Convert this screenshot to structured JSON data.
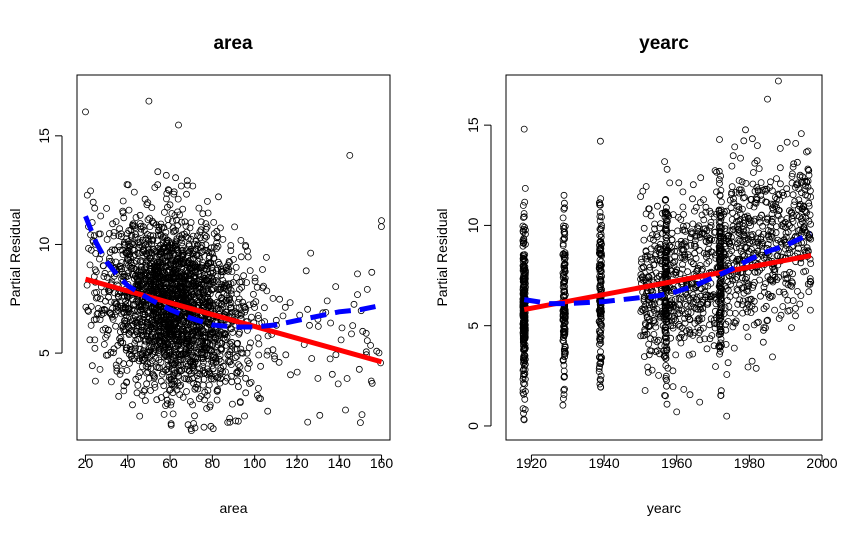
{
  "chart_data": [
    {
      "type": "scatter",
      "title": "area",
      "xlabel": "area",
      "ylabel": "Partial Residual",
      "xlim": [
        16,
        164
      ],
      "ylim": [
        1,
        17.8
      ],
      "xticks": [
        20,
        40,
        60,
        80,
        100,
        120,
        140,
        160
      ],
      "yticks": [
        5,
        10,
        15
      ],
      "points_description": "dense cloud of roughly 2400 hollow circle residuals, heaviest at area 40-100, residuals mostly 3-12",
      "cloud": {
        "x_center": 62,
        "x_spread": 17,
        "y_center": 7.4,
        "y_spread": 2.0
      },
      "series": [
        {
          "style": "solid",
          "color": "#ff0000",
          "x": [
            20,
            160
          ],
          "y": [
            8.4,
            4.6
          ]
        },
        {
          "style": "dashed",
          "color": "#0000ff",
          "x": [
            20,
            25,
            30,
            35,
            40,
            50,
            60,
            70,
            80,
            90,
            100,
            110,
            120,
            130,
            140,
            150,
            160
          ],
          "y": [
            11.3,
            10.1,
            9.2,
            8.6,
            8.1,
            7.5,
            7.0,
            6.6,
            6.3,
            6.2,
            6.2,
            6.3,
            6.5,
            6.7,
            6.9,
            7.0,
            7.2
          ]
        }
      ]
    },
    {
      "type": "scatter",
      "title": "yearc",
      "xlabel": "yearc",
      "ylabel": "Partial Residual",
      "xlim": [
        1913,
        2000
      ],
      "ylim": [
        -0.7,
        17.5
      ],
      "xticks": [
        1920,
        1940,
        1960,
        1980,
        2000
      ],
      "yticks": [
        0,
        5,
        10,
        15
      ],
      "points_description": "hollow circle residuals stacked in vertical columns at 1918, 1929, 1939, 1957, 1972, plus spread points 1950-1997",
      "series": [
        {
          "style": "solid",
          "color": "#ff0000",
          "x": [
            1918,
            1997
          ],
          "y": [
            5.8,
            8.5
          ]
        },
        {
          "style": "dashed",
          "color": "#0000ff",
          "x": [
            1918,
            1925,
            1930,
            1940,
            1945,
            1950,
            1955,
            1960,
            1965,
            1970,
            1975,
            1980,
            1985,
            1990,
            1997
          ],
          "y": [
            6.3,
            6.1,
            6.1,
            6.2,
            6.3,
            6.4,
            6.5,
            6.7,
            7.0,
            7.4,
            7.8,
            8.3,
            8.7,
            9.0,
            9.6
          ]
        }
      ]
    }
  ]
}
